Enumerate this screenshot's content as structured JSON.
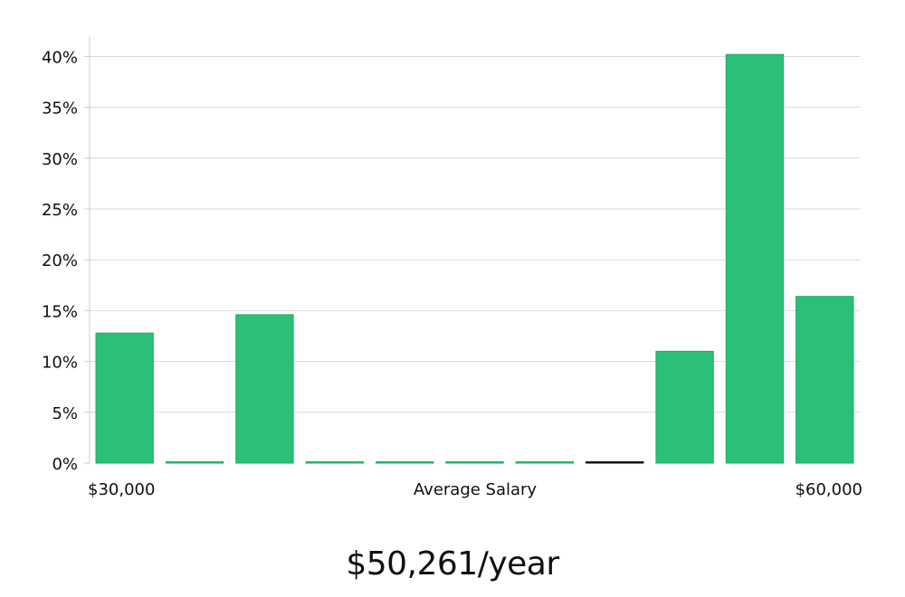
{
  "chart_data": {
    "type": "bar",
    "title": "",
    "xlabel": "Average Salary",
    "ylabel": "",
    "x_range_labels": {
      "min": "$30,000",
      "max": "$60,000"
    },
    "ylim": [
      0,
      42
    ],
    "yticks": [
      0,
      5,
      10,
      15,
      20,
      25,
      30,
      35,
      40
    ],
    "ytick_suffix": "%",
    "grid": true,
    "bins": [
      "$30,000–$32,727",
      "$32,727–$35,455",
      "$35,455–$38,182",
      "$38,182–$40,909",
      "$40,909–$43,636",
      "$43,636–$46,364",
      "$46,364–$49,091",
      "$49,091–$51,818",
      "$51,818–$54,545",
      "$54,545–$57,273",
      "$57,273–$60,000"
    ],
    "values": [
      12.8,
      0,
      14.6,
      0,
      0,
      0,
      0,
      0,
      11.0,
      40.2,
      16.4
    ],
    "highlight_bin_index": 7,
    "series_color": "#2bbf78",
    "series_edge_color": "#1fae66",
    "highlight_color": "#111111",
    "grid_color": "#d9d9d9"
  },
  "summary": {
    "average_salary_text": "$50,261/year"
  }
}
